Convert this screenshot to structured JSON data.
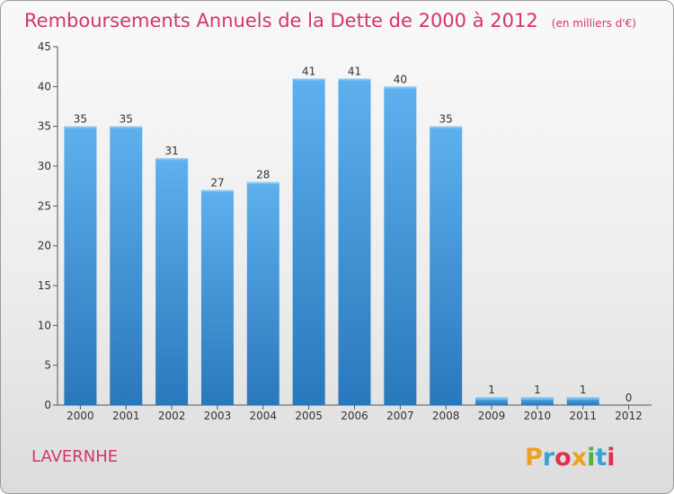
{
  "chart_data": {
    "type": "bar",
    "title": "Remboursements Annuels de la Dette de 2000 à 2012",
    "subtitle": "(en milliers d'€)",
    "categories": [
      "2000",
      "2001",
      "2002",
      "2003",
      "2004",
      "2005",
      "2006",
      "2007",
      "2008",
      "2009",
      "2010",
      "2011",
      "2012"
    ],
    "values": [
      35,
      35,
      31,
      27,
      28,
      41,
      41,
      40,
      35,
      1,
      1,
      1,
      0
    ],
    "ylim": [
      0,
      45
    ],
    "yticks": [
      0,
      5,
      10,
      15,
      20,
      25,
      30,
      35,
      40,
      45
    ],
    "grid": false,
    "bar_color": "#3d8fd6"
  },
  "place_name": "LAVERNHE",
  "logo": {
    "letters": [
      "P",
      "r",
      "o",
      "x",
      "i",
      "t",
      "i"
    ],
    "colors": [
      "#f0a020",
      "#3aa0d8",
      "#e03050",
      "#f0a020",
      "#50b040",
      "#3aa0d8",
      "#e03050"
    ]
  }
}
